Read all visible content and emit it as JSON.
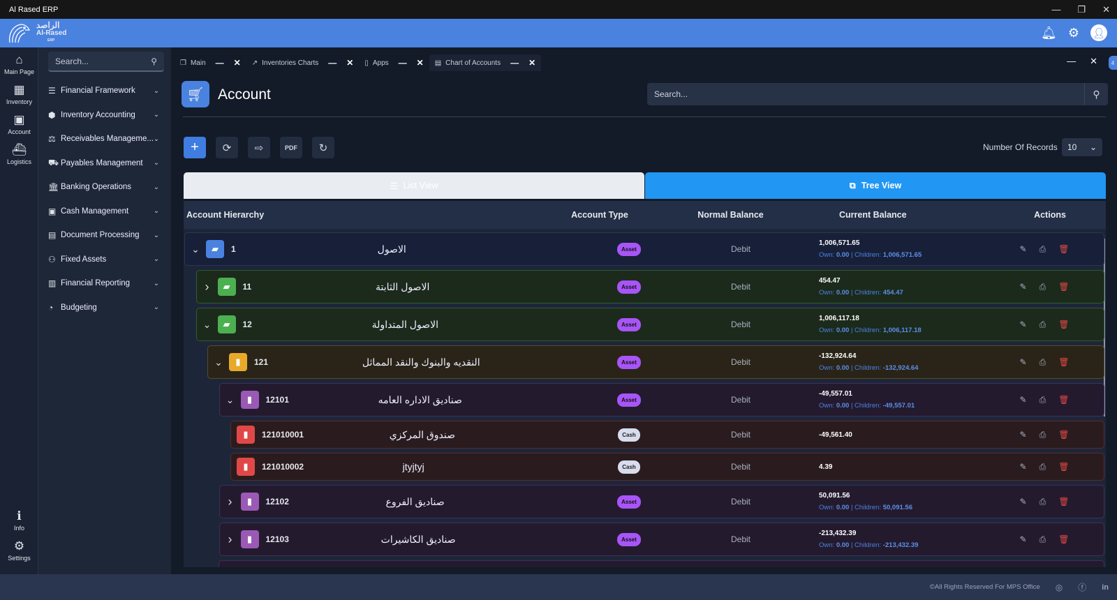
{
  "window": {
    "title": "Al Rased ERP",
    "controls": [
      "—",
      "❐",
      "✕"
    ]
  },
  "header": {
    "logo_ar": "الراصد",
    "logo_en": "Al-Rased",
    "logo_sub": "ERP"
  },
  "rail": [
    {
      "label": "Main Page",
      "icon": "home-icon"
    },
    {
      "label": "Inventory",
      "icon": "boxes-icon"
    },
    {
      "label": "Account",
      "icon": "money-icon"
    },
    {
      "label": "Logistics",
      "icon": "ship-icon"
    },
    {
      "label": "Info",
      "icon": "info-icon"
    },
    {
      "label": "Settings",
      "icon": "gear-icon"
    }
  ],
  "sidebar": {
    "search_placeholder": "Search...",
    "items": [
      {
        "label": "Financial Framework"
      },
      {
        "label": "Inventory Accounting"
      },
      {
        "label": "Receivables Manageme..."
      },
      {
        "label": "Payables Management"
      },
      {
        "label": "Banking Operations"
      },
      {
        "label": "Cash Management"
      },
      {
        "label": "Document Processing"
      },
      {
        "label": "Fixed Assets"
      },
      {
        "label": "Financial Reporting"
      },
      {
        "label": "Budgeting"
      }
    ]
  },
  "tabs": [
    {
      "label": "Main"
    },
    {
      "label": "Inventories Charts"
    },
    {
      "label": "Apps"
    },
    {
      "label": "Chart of Accounts",
      "active": true
    }
  ],
  "tab_count": "4",
  "page": {
    "title": "Account",
    "search_placeholder": "Search...",
    "records_label": "Number Of Records",
    "records_value": "10",
    "list_view": "List View",
    "tree_view": "Tree View",
    "active_view": "Tree View"
  },
  "table": {
    "headers": {
      "hierarchy": "Account Hierarchy",
      "type": "Account Type",
      "normal": "Normal Balance",
      "current": "Current Balance",
      "actions": "Actions"
    },
    "rows": [
      {
        "level": 0,
        "expander": "down",
        "color": "blue",
        "code": "1",
        "name": "الاصول",
        "type": "Asset",
        "normal": "Debit",
        "balance": "1,006,571.65",
        "own": "0.00",
        "children": "1,006,571.65"
      },
      {
        "level": 1,
        "expander": "right",
        "color": "green",
        "code": "11",
        "name": "الاصول الثابتة",
        "type": "Asset",
        "normal": "Debit",
        "balance": "454.47",
        "own": "0.00",
        "children": "454.47"
      },
      {
        "level": 1,
        "expander": "down",
        "color": "green",
        "code": "12",
        "name": "الاصول المتداولة",
        "type": "Asset",
        "normal": "Debit",
        "balance": "1,006,117.18",
        "own": "0.00",
        "children": "1,006,117.18"
      },
      {
        "level": 2,
        "expander": "down",
        "color": "amber",
        "code": "121",
        "name": "النقديه والبنوك والنقد المماثل",
        "type": "Asset",
        "normal": "Debit",
        "balance": "-132,924.64",
        "own": "0.00",
        "children": "-132,924.64"
      },
      {
        "level": 3,
        "expander": "down",
        "color": "purple",
        "code": "12101",
        "name": "صناديق الاداره العامه",
        "type": "Asset",
        "normal": "Debit",
        "balance": "-49,557.01",
        "own": "0.00",
        "children": "-49,557.01"
      },
      {
        "level": 4,
        "expander": "",
        "color": "red",
        "code": "121010001",
        "name": "صندوق المركزي",
        "type": "Cash",
        "normal": "Debit",
        "balance": "-49,561.40"
      },
      {
        "level": 4,
        "expander": "",
        "color": "red",
        "code": "121010002",
        "name": "jtyjtyj",
        "type": "Cash",
        "normal": "Debit",
        "balance": "4.39"
      },
      {
        "level": 3,
        "expander": "right",
        "color": "purple",
        "code": "12102",
        "name": "صناديق الفروع",
        "type": "Asset",
        "normal": "Debit",
        "balance": "50,091.56",
        "own": "0.00",
        "children": "50,091.56"
      },
      {
        "level": 3,
        "expander": "right",
        "color": "purple",
        "code": "12103",
        "name": "صناديق الكاشيرات",
        "type": "Asset",
        "normal": "Debit",
        "balance": "-213,432.39",
        "own": "0.00",
        "children": "-213,432.39"
      }
    ]
  },
  "labels": {
    "own": "Own: ",
    "children": " | Children: "
  },
  "footer": {
    "copyright": "©All Rights Reserved For MPS Office"
  },
  "colors": {
    "accent": "#4a82e0",
    "tree_active": "#2196f3",
    "asset_badge": "#a855f7",
    "delete": "#e04848"
  }
}
